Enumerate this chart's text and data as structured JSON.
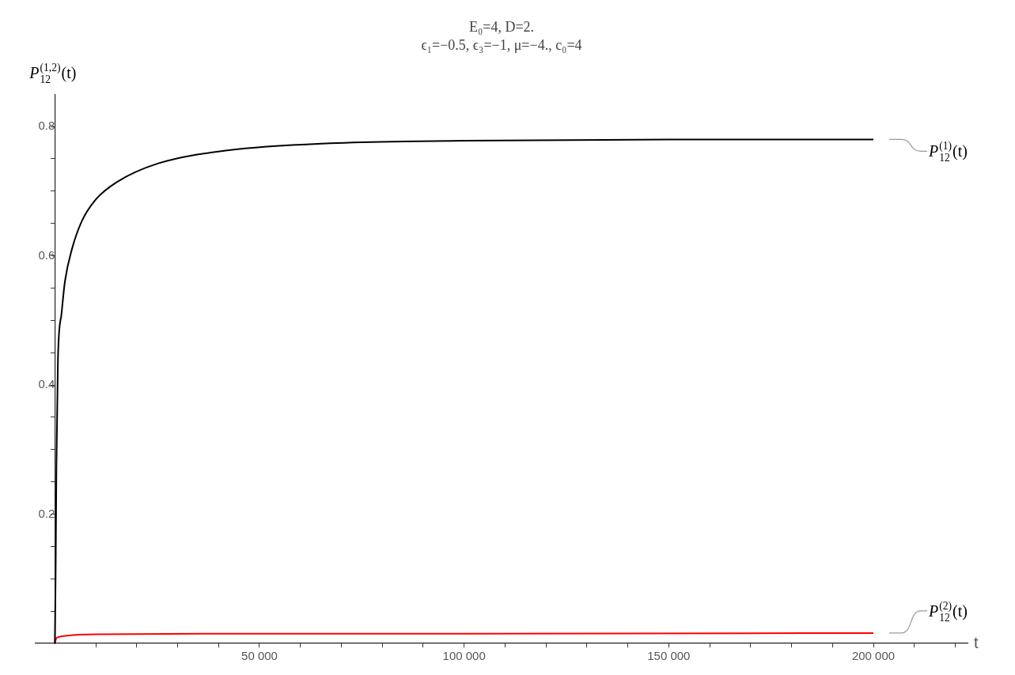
{
  "chart_data": {
    "type": "line",
    "title": "E₀=4, D=2.",
    "subtitle": "ϵ₁=−0.5, ϵ₃=−1, μ=−4., c₀=4",
    "xlabel": "t",
    "ylabel": "P$_{12}$$^{(1,2)}$(t)",
    "series": [
      {
        "name": "P$_{12}$$^{(1)}$(t)",
        "color": "#000000",
        "x": [
          0,
          190,
          380,
          760,
          1630,
          2460,
          4170,
          6630,
          10000,
          15150,
          25300,
          42200,
          67200,
          100000,
          150000,
          200000
        ],
        "values": [
          0,
          0.106,
          0.27,
          0.44,
          0.51,
          0.56,
          0.61,
          0.654,
          0.687,
          0.714,
          0.743,
          0.763,
          0.774,
          0.778,
          0.78,
          0.78
        ]
      },
      {
        "name": "P$_{12}$$^{(2)}$(t)",
        "color": "#ff0000",
        "x": [
          0,
          300,
          1000,
          3000,
          10000,
          50000,
          100000,
          200000
        ],
        "values": [
          0,
          0.007,
          0.01,
          0.012,
          0.014,
          0.015,
          0.015,
          0.016
        ]
      }
    ],
    "xlim": [
      -4700,
      223000
    ],
    "ylim": [
      0,
      0.85
    ],
    "xticks": [
      {
        "value": 10000,
        "label": null
      },
      {
        "value": 20000,
        "label": null
      },
      {
        "value": 30000,
        "label": null
      },
      {
        "value": 40000,
        "label": null
      },
      {
        "value": 50000,
        "label": "50 000"
      },
      {
        "value": 60000,
        "label": null
      },
      {
        "value": 70000,
        "label": null
      },
      {
        "value": 80000,
        "label": null
      },
      {
        "value": 90000,
        "label": null
      },
      {
        "value": 100000,
        "label": "100 000"
      },
      {
        "value": 110000,
        "label": null
      },
      {
        "value": 120000,
        "label": null
      },
      {
        "value": 130000,
        "label": null
      },
      {
        "value": 140000,
        "label": null
      },
      {
        "value": 150000,
        "label": "150 000"
      },
      {
        "value": 160000,
        "label": null
      },
      {
        "value": 170000,
        "label": null
      },
      {
        "value": 180000,
        "label": null
      },
      {
        "value": 190000,
        "label": null
      },
      {
        "value": 200000,
        "label": "200 000"
      },
      {
        "value": 210000,
        "label": null
      },
      {
        "value": 220000,
        "label": null
      }
    ],
    "yticks": [
      {
        "value": 0.05,
        "label": null
      },
      {
        "value": 0.1,
        "label": null
      },
      {
        "value": 0.15,
        "label": null
      },
      0.2,
      {
        "value": 0.25,
        "label": null
      },
      {
        "value": 0.3,
        "label": null
      },
      {
        "value": 0.35,
        "label": null
      },
      0.4,
      {
        "value": 0.45,
        "label": null
      },
      {
        "value": 0.5,
        "label": null
      },
      {
        "value": 0.55,
        "label": null
      },
      0.6,
      {
        "value": 0.65,
        "label": null
      },
      {
        "value": 0.7,
        "label": null
      },
      {
        "value": 0.75,
        "label": null
      },
      0.8
    ],
    "grid": false,
    "legend": false,
    "marker": "none",
    "line_style": "solid"
  }
}
